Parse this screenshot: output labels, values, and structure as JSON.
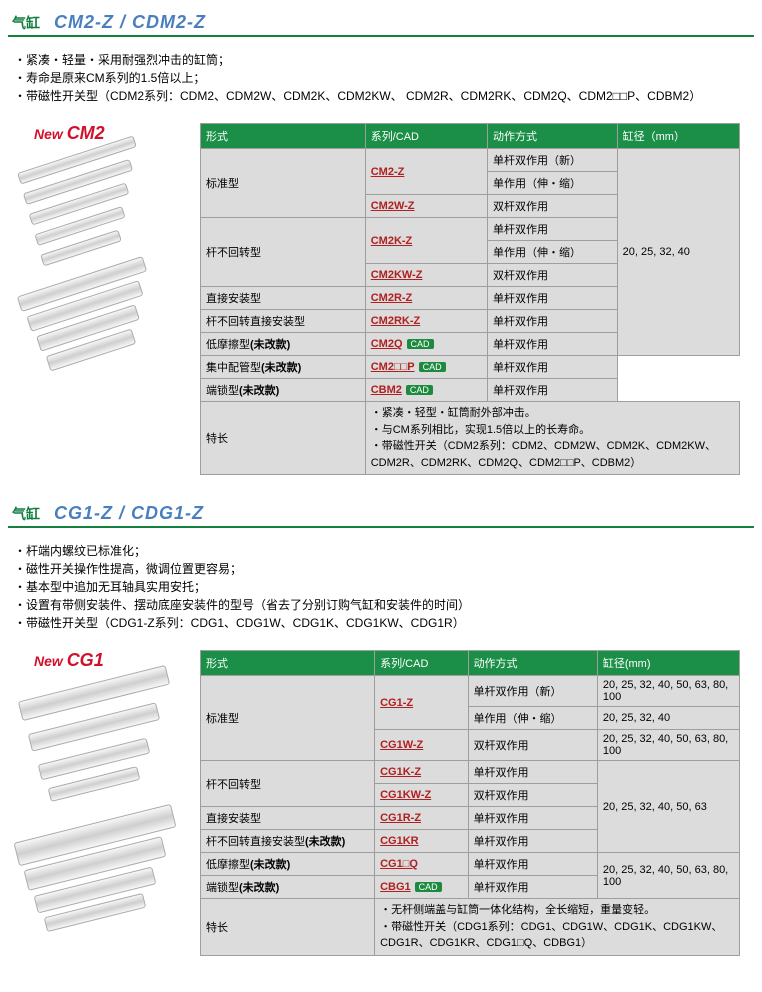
{
  "colors": {
    "brand_green": "#14803f",
    "header_green": "#1b8f47",
    "title_blue": "#4a7fbf",
    "link_red": "#b02020",
    "new_red": "#d1112b",
    "cad_bg": "#1d8b3f",
    "cell_bg": "#dcdcdc",
    "border": "#9e9e9e"
  },
  "products": [
    {
      "category": "气缸",
      "model": "CM2-Z / CDM2-Z",
      "new_label": "New CM2",
      "bullets": [
        "・紧凑・轻量・采用耐强烈冲击的缸筒；",
        "・寿命是原来CM系列的1.5倍以上；",
        "・带磁性开关型（CDM2系列：CDM2、CDM2W、CDM2K、CDM2KW、 CDM2R、CDM2RK、CDM2Q、CDM2□□P、CDBM2）"
      ],
      "headers": [
        "形式",
        "系列/CAD",
        "动作方式",
        "缸径（mm）"
      ],
      "col_widths": [
        "125",
        "90",
        "96",
        "90"
      ],
      "rows": [
        {
          "type": "标准型",
          "type_rowspan": 3,
          "series": "CM2-Z",
          "series_rowspan": 2,
          "action": "单杆双作用（新）",
          "bore": "20, 25, 32, 40",
          "bore_rowspan": 9
        },
        {
          "action": "单作用（伸・缩）"
        },
        {
          "series": "CM2W-Z",
          "action": "双杆双作用"
        },
        {
          "type": "杆不回转型",
          "type_rowspan": 3,
          "series": "CM2K-Z",
          "series_rowspan": 2,
          "action": "单杆双作用"
        },
        {
          "action": "单作用（伸・缩）"
        },
        {
          "series": "CM2KW-Z",
          "action": "双杆双作用"
        },
        {
          "type": "直接安装型",
          "series": "CM2R-Z",
          "action": "单杆双作用"
        },
        {
          "type": "杆不回转直接安装型",
          "series": "CM2RK-Z",
          "action": "单杆双作用"
        },
        {
          "type": "低摩擦型(未改款)",
          "type_unmod": true,
          "series": "CM2Q",
          "cad": true,
          "action": "单杆双作用"
        },
        {
          "type": "集中配管型(未改款)",
          "type_unmod": true,
          "series": "CM2□□P",
          "cad": true,
          "action": "单杆双作用",
          "no_bore": true
        },
        {
          "type": "端锁型(未改款)",
          "type_unmod": true,
          "series": "CBM2",
          "cad": true,
          "action": "单杆双作用",
          "no_bore": true
        }
      ],
      "features_label": "特长",
      "features": [
        "紧凑・轻型・缸筒耐外部冲击。",
        "与CM系列相比，实现1.5倍以上的长寿命。",
        "带磁性开关（CDM2系列：CDM2、CDM2W、CDM2K、CDM2KW、CDM2R、CDM2RK、CDM2Q、CDM2□□P、CDBM2）"
      ]
    },
    {
      "category": "气缸",
      "model": "CG1-Z / CDG1-Z",
      "new_label": "New CG1",
      "bullets": [
        "・杆端内螺纹已标准化；",
        "・磁性开关操作性提高，微调位置更容易；",
        "・基本型中追加无耳轴具实用安托；",
        "・设置有带侧安装件、摆动底座安装件的型号（省去了分别订购气缸和安装件的时间）",
        "・带磁性开关型（CDG1-Z系列：CDG1、CDG1W、CDG1K、CDG1KW、CDG1R）"
      ],
      "headers": [
        "形式",
        "系列/CAD",
        "动作方式",
        "缸径(mm)"
      ],
      "col_widths": [
        "125",
        "62",
        "90",
        "100"
      ],
      "rows": [
        {
          "type": "标准型",
          "type_rowspan": 3,
          "series": "CG1-Z",
          "series_rowspan": 2,
          "action": "单杆双作用（新）",
          "bore": "20, 25, 32, 40, 50, 63, 80, 100"
        },
        {
          "action": "单作用（伸・缩）",
          "bore": "20, 25, 32, 40"
        },
        {
          "series": "CG1W-Z",
          "action": "双杆双作用",
          "bore": "20, 25, 32, 40, 50, 63, 80, 100"
        },
        {
          "type": "杆不回转型",
          "type_rowspan": 2,
          "series": "CG1K-Z",
          "action": "单杆双作用",
          "bore": "20, 25, 32, 40, 50, 63",
          "bore_rowspan": 4
        },
        {
          "series": "CG1KW-Z",
          "action": "双杆双作用"
        },
        {
          "type": "直接安装型",
          "series": "CG1R-Z",
          "action": "单杆双作用"
        },
        {
          "type": "杆不回转直接安装型(未改款)",
          "type_unmod": true,
          "series": "CG1KR",
          "action": "单杆双作用"
        },
        {
          "type": "低摩擦型(未改款)",
          "type_unmod": true,
          "series": "CG1□Q",
          "action": "单杆双作用",
          "bore": "20, 25, 32, 40, 50, 63, 80, 100",
          "bore_rowspan": 2
        },
        {
          "type": "端锁型(未改款)",
          "type_unmod": true,
          "series": "CBG1",
          "cad": true,
          "action": "单杆双作用"
        }
      ],
      "features_label": "特长",
      "features": [
        "无杆侧端盖与缸筒一体化结构，全长缩短，重量变轻。",
        "带磁性开关（CDG1系列：CDG1、CDG1W、CDG1K、CDG1KW、CDG1R、CDG1KR、CDG1□Q、CDBG1）"
      ]
    }
  ]
}
